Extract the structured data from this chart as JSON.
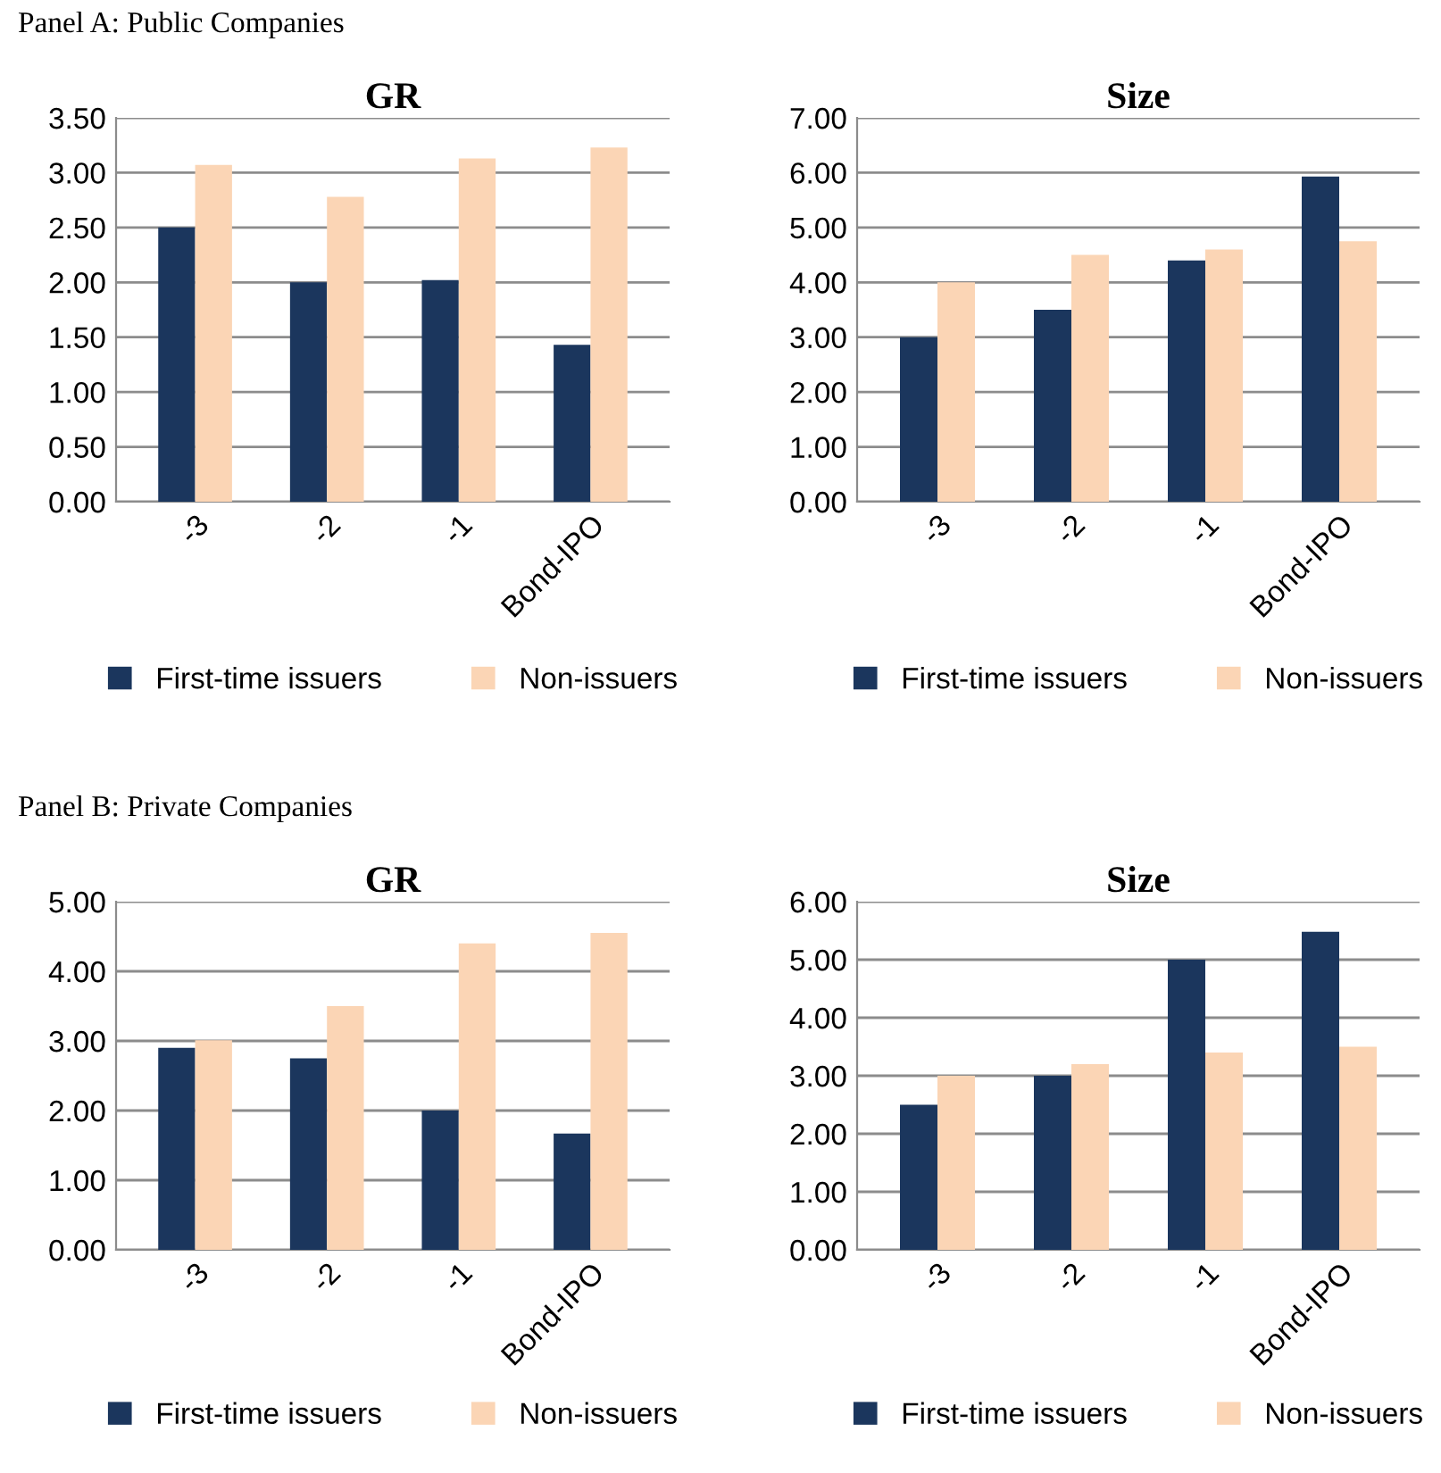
{
  "chart_data": [
    {
      "type": "bar",
      "title": "GR",
      "annotations": [
        "Panel A: Public Companies"
      ],
      "categories": [
        "-3",
        "-2",
        "-1",
        "Bond-IPO"
      ],
      "series": [
        {
          "name": "First-time issuers",
          "color": "#1b365d",
          "values": [
            2.5,
            2.0,
            2.02,
            1.43
          ]
        },
        {
          "name": "Non-issuers",
          "color": "#fbd5b5",
          "values": [
            3.07,
            2.78,
            3.13,
            3.23
          ]
        }
      ],
      "ylim": [
        0,
        3.5
      ],
      "yticks": [
        {
          "value": 0,
          "label": "0.00"
        },
        {
          "value": 0.5,
          "label": "0.50"
        },
        {
          "value": 1,
          "label": "1.00"
        },
        {
          "value": 1.5,
          "label": "1.50"
        },
        {
          "value": 2,
          "label": "2.00"
        },
        {
          "value": 2.5,
          "label": "2.50"
        },
        {
          "value": 3,
          "label": "3.00"
        },
        {
          "value": 3.5,
          "label": "3.50"
        }
      ],
      "grid": "y",
      "legend": "bottom"
    },
    {
      "type": "bar",
      "title": "Size",
      "categories": [
        "-3",
        "-2",
        "-1",
        "Bond-IPO"
      ],
      "series": [
        {
          "name": "First-time issuers",
          "color": "#1b365d",
          "values": [
            3.0,
            3.5,
            4.4,
            5.93
          ]
        },
        {
          "name": "Non-issuers",
          "color": "#fbd5b5",
          "values": [
            4.0,
            4.5,
            4.6,
            4.75
          ]
        }
      ],
      "ylim": [
        0,
        7
      ],
      "yticks": [
        {
          "value": 0,
          "label": "0.00"
        },
        {
          "value": 1,
          "label": "1.00"
        },
        {
          "value": 2,
          "label": "2.00"
        },
        {
          "value": 3,
          "label": "3.00"
        },
        {
          "value": 4,
          "label": "4.00"
        },
        {
          "value": 5,
          "label": "5.00"
        },
        {
          "value": 6,
          "label": "6.00"
        },
        {
          "value": 7,
          "label": "7.00"
        }
      ],
      "grid": "y",
      "legend": "bottom"
    },
    {
      "type": "bar",
      "title": "GR",
      "annotations": [
        "Panel B: Private Companies"
      ],
      "categories": [
        "-3",
        "-2",
        "-1",
        "Bond-IPO"
      ],
      "series": [
        {
          "name": "First-time issuers",
          "color": "#1b365d",
          "values": [
            2.9,
            2.75,
            2.0,
            1.67
          ]
        },
        {
          "name": "Non-issuers",
          "color": "#fbd5b5",
          "values": [
            3.01,
            3.5,
            4.4,
            4.55
          ]
        }
      ],
      "ylim": [
        0,
        5
      ],
      "yticks": [
        {
          "value": 0,
          "label": "0.00"
        },
        {
          "value": 1,
          "label": "1.00"
        },
        {
          "value": 2,
          "label": "2.00"
        },
        {
          "value": 3,
          "label": "3.00"
        },
        {
          "value": 4,
          "label": "4.00"
        },
        {
          "value": 5,
          "label": "5.00"
        }
      ],
      "grid": "y",
      "legend": "bottom"
    },
    {
      "type": "bar",
      "title": "Size",
      "categories": [
        "-3",
        "-2",
        "-1",
        "Bond-IPO"
      ],
      "series": [
        {
          "name": "First-time issuers",
          "color": "#1b365d",
          "values": [
            2.5,
            3.0,
            5.0,
            5.48
          ]
        },
        {
          "name": "Non-issuers",
          "color": "#fbd5b5",
          "values": [
            3.0,
            3.2,
            3.4,
            3.5
          ]
        }
      ],
      "ylim": [
        0,
        6
      ],
      "yticks": [
        {
          "value": 0,
          "label": "0.00"
        },
        {
          "value": 1,
          "label": "1.00"
        },
        {
          "value": 2,
          "label": "2.00"
        },
        {
          "value": 3,
          "label": "3.00"
        },
        {
          "value": 4,
          "label": "4.00"
        },
        {
          "value": 5,
          "label": "5.00"
        },
        {
          "value": 6,
          "label": "6.00"
        }
      ],
      "grid": "y",
      "legend": "bottom"
    }
  ]
}
